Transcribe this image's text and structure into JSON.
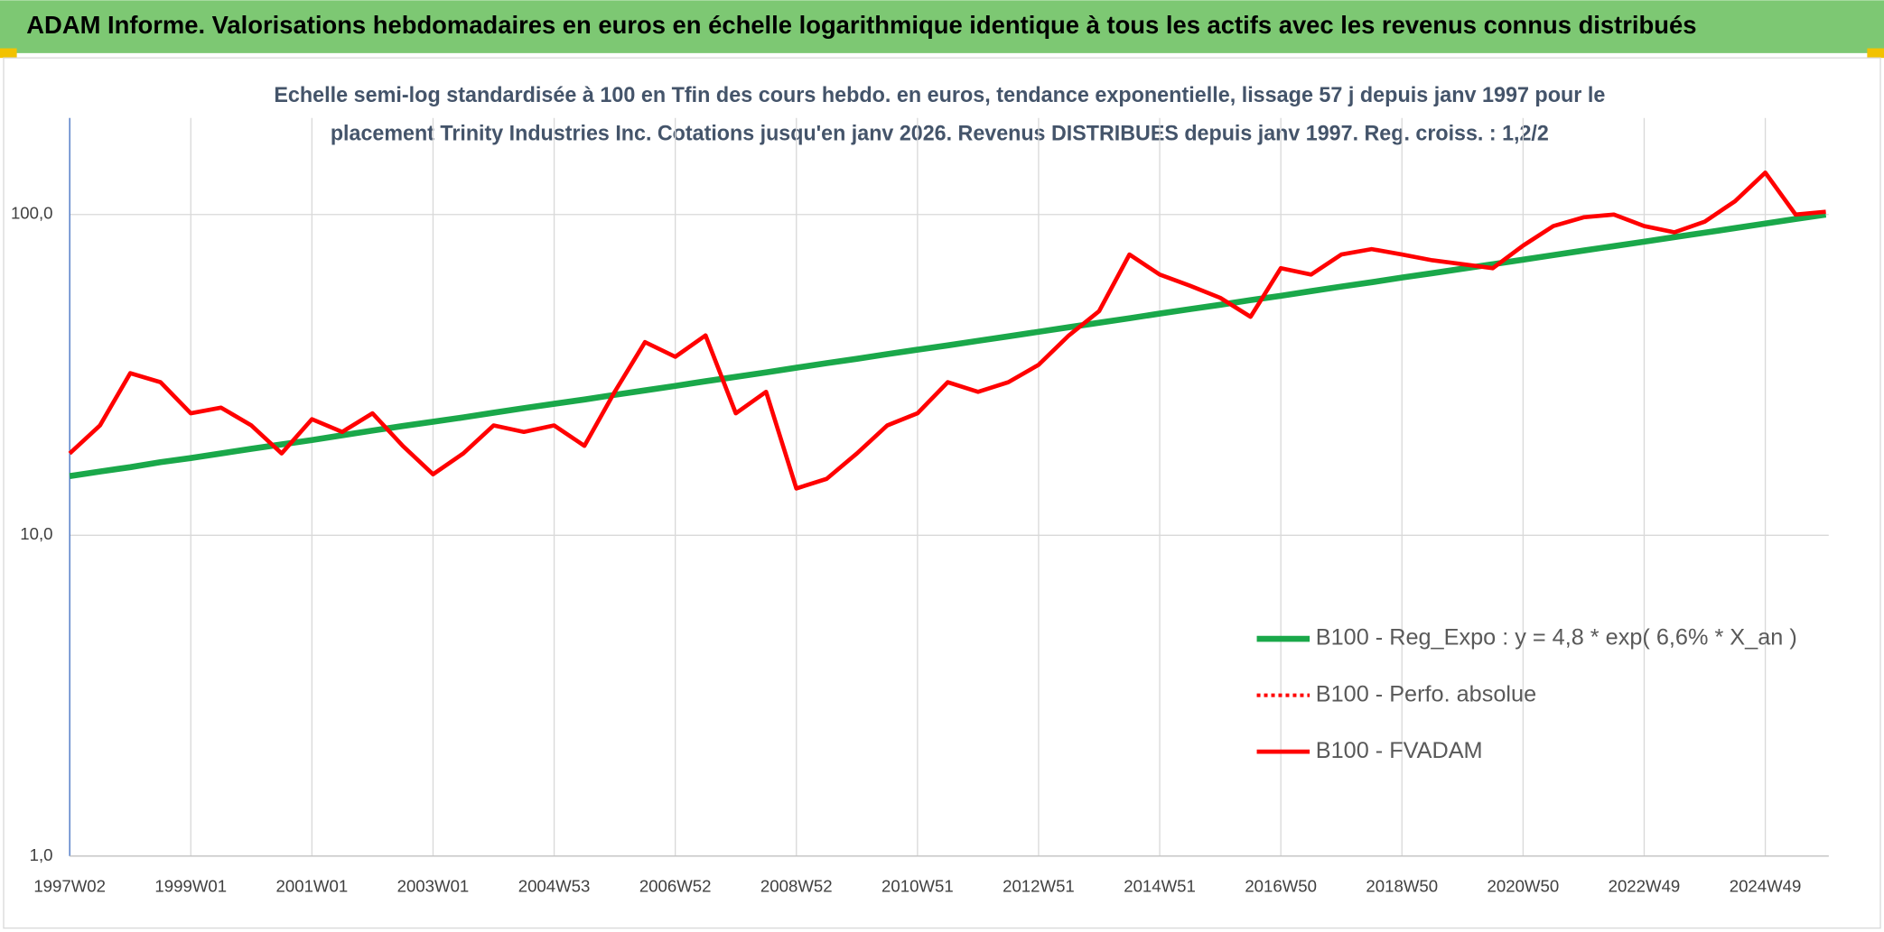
{
  "header": {
    "title": "ADAM Informe. Valorisations hebdomadaires en euros en échelle logarithmique identique à tous les actifs avec les revenus connus distribués"
  },
  "chart_data": {
    "type": "line",
    "subtitle": [
      "Echelle semi-log standardisée à 100 en Tfin des cours hebdo. en euros, tendance exponentielle, lissage 57 j depuis janv 1997 pour le",
      "placement Trinity Industries Inc. Cotations jusqu'en janv 2026. Revenus DISTRIBUES depuis janv 1997. Reg. croiss. : 1,2/2"
    ],
    "log_scale": true,
    "grid": true,
    "legend": "lower right",
    "ylim": [
      1,
      200
    ],
    "yticks": [
      {
        "value": 1,
        "label": "1,0"
      },
      {
        "value": 10,
        "label": "10,0"
      },
      {
        "value": 100,
        "label": "100,0"
      }
    ],
    "categories": [
      "1997W02",
      null,
      null,
      null,
      "1999W01",
      null,
      null,
      null,
      "2001W01",
      null,
      null,
      null,
      "2003W01",
      null,
      null,
      null,
      "2004W53",
      null,
      null,
      null,
      "2006W52",
      null,
      null,
      null,
      "2008W52",
      null,
      null,
      null,
      "2010W51",
      null,
      null,
      null,
      "2012W51",
      null,
      null,
      null,
      "2014W51",
      null,
      null,
      null,
      "2016W50",
      null,
      null,
      null,
      "2018W50",
      null,
      null,
      null,
      "2020W50",
      null,
      null,
      null,
      "2022W49",
      null,
      null,
      null,
      "2024W49",
      null,
      null
    ],
    "series": [
      {
        "name": "B100 - Reg_Expo : y = 4,8 * exp( 6,6% *  X_an )",
        "color": "#1aa84a",
        "style": "solid",
        "values": [
          15.3,
          15.8,
          16.3,
          16.9,
          17.4,
          18.0,
          18.6,
          19.2,
          19.8,
          20.5,
          21.2,
          21.9,
          22.6,
          23.3,
          24.1,
          24.9,
          25.7,
          26.5,
          27.4,
          28.3,
          29.2,
          30.2,
          31.2,
          32.2,
          33.3,
          34.4,
          35.5,
          36.7,
          37.9,
          39.1,
          40.4,
          41.7,
          43.1,
          44.5,
          46.0,
          47.5,
          49.1,
          50.7,
          52.3,
          54.1,
          55.8,
          57.7,
          59.6,
          61.5,
          63.6,
          65.6,
          67.8,
          70.0,
          72.3,
          74.7,
          77.2,
          79.7,
          82.3,
          85.0,
          87.8,
          90.7,
          93.7,
          96.8,
          100.0
        ]
      },
      {
        "name": "B100 - Perfo. absolue",
        "color": "#ff0000",
        "style": "dotted",
        "values": [
          18,
          22,
          32,
          30,
          24,
          25,
          22,
          18,
          23,
          21,
          24,
          19,
          15.5,
          18,
          22,
          21,
          22,
          19,
          28,
          40,
          36,
          42,
          24,
          28,
          14,
          15,
          18,
          22,
          24,
          30,
          28,
          30,
          34,
          42,
          50,
          75,
          65,
          60,
          55,
          48,
          68,
          65,
          75,
          78,
          75,
          72,
          70,
          68,
          80,
          92,
          98,
          100,
          92,
          88,
          95,
          110,
          135,
          100,
          102
        ]
      },
      {
        "name": "B100 - FVADAM",
        "color": "#ff0000",
        "style": "solid",
        "values": [
          18,
          22,
          32,
          30,
          24,
          25,
          22,
          18,
          23,
          21,
          24,
          19,
          15.5,
          18,
          22,
          21,
          22,
          19,
          28,
          40,
          36,
          42,
          24,
          28,
          14,
          15,
          18,
          22,
          24,
          30,
          28,
          30,
          34,
          42,
          50,
          75,
          65,
          60,
          55,
          48,
          68,
          65,
          75,
          78,
          75,
          72,
          70,
          68,
          80,
          92,
          98,
          100,
          92,
          88,
          95,
          110,
          135,
          100,
          102
        ]
      }
    ]
  }
}
